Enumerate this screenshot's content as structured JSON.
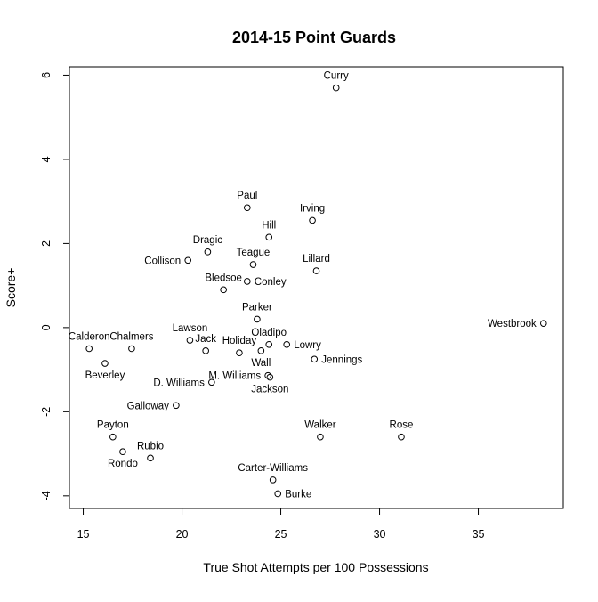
{
  "title": "2014-15 Point Guards",
  "xlabel": "True Shot Attempts per 100 Possessions",
  "ylabel": "Score+",
  "chart_data": {
    "type": "scatter",
    "title": "2014-15 Point Guards",
    "xlabel": "True Shot Attempts per 100 Possessions",
    "ylabel": "Score+",
    "xlim": [
      14.3,
      39.3
    ],
    "ylim": [
      -4.3,
      6.2
    ],
    "xticks": [
      "15",
      "20",
      "25",
      "30",
      "35"
    ],
    "xtick_values": [
      15,
      20,
      25,
      30,
      35
    ],
    "yticks": [
      "-4",
      "-2",
      "0",
      "2",
      "4",
      "6"
    ],
    "ytick_values": [
      -4,
      -2,
      0,
      2,
      4,
      6
    ],
    "grid": false,
    "legend": "none",
    "marker": "open-circle",
    "marker_color": "#000000",
    "points": [
      {
        "name": "Curry",
        "x": 27.8,
        "y": 5.7,
        "label_pos": "above"
      },
      {
        "name": "Paul",
        "x": 23.3,
        "y": 2.85,
        "label_pos": "above"
      },
      {
        "name": "Irving",
        "x": 26.6,
        "y": 2.55,
        "label_pos": "above"
      },
      {
        "name": "Hill",
        "x": 24.4,
        "y": 2.15,
        "label_pos": "above"
      },
      {
        "name": "Dragic",
        "x": 21.3,
        "y": 1.8,
        "label_pos": "above"
      },
      {
        "name": "Collison",
        "x": 20.3,
        "y": 1.6,
        "label_pos": "left"
      },
      {
        "name": "Teague",
        "x": 23.6,
        "y": 1.5,
        "label_pos": "above"
      },
      {
        "name": "Lillard",
        "x": 26.8,
        "y": 1.35,
        "label_pos": "above"
      },
      {
        "name": "Conley",
        "x": 23.3,
        "y": 1.1,
        "label_pos": "right"
      },
      {
        "name": "Bledsoe",
        "x": 22.1,
        "y": 0.9,
        "label_pos": "above"
      },
      {
        "name": "Parker",
        "x": 23.8,
        "y": 0.2,
        "label_pos": "above"
      },
      {
        "name": "Westbrook",
        "x": 38.3,
        "y": 0.1,
        "label_pos": "left"
      },
      {
        "name": "Lawson",
        "x": 20.4,
        "y": -0.3,
        "label_pos": "above"
      },
      {
        "name": "Oladipo",
        "x": 24.4,
        "y": -0.4,
        "label_pos": "above"
      },
      {
        "name": "Lowry",
        "x": 25.3,
        "y": -0.4,
        "label_pos": "right"
      },
      {
        "name": "Calderon",
        "x": 15.3,
        "y": -0.5,
        "label_pos": "above"
      },
      {
        "name": "Chalmers",
        "x": 17.45,
        "y": -0.5,
        "label_pos": "above"
      },
      {
        "name": "Jack",
        "x": 21.2,
        "y": -0.55,
        "label_pos": "above"
      },
      {
        "name": "Wall",
        "x": 24.0,
        "y": -0.55,
        "label_pos": "below"
      },
      {
        "name": "Holiday",
        "x": 22.9,
        "y": -0.6,
        "label_pos": "above"
      },
      {
        "name": "Jennings",
        "x": 26.7,
        "y": -0.75,
        "label_pos": "right"
      },
      {
        "name": "Beverley",
        "x": 16.1,
        "y": -0.85,
        "label_pos": "below"
      },
      {
        "name": "M. Williams",
        "x": 24.35,
        "y": -1.14,
        "label_pos": "left"
      },
      {
        "name": "Jackson",
        "x": 24.45,
        "y": -1.18,
        "label_pos": "below"
      },
      {
        "name": "D. Williams",
        "x": 21.5,
        "y": -1.3,
        "label_pos": "left"
      },
      {
        "name": "Galloway",
        "x": 19.7,
        "y": -1.85,
        "label_pos": "left"
      },
      {
        "name": "Payton",
        "x": 16.5,
        "y": -2.6,
        "label_pos": "above"
      },
      {
        "name": "Walker",
        "x": 27.0,
        "y": -2.6,
        "label_pos": "above"
      },
      {
        "name": "Rose",
        "x": 31.1,
        "y": -2.6,
        "label_pos": "above"
      },
      {
        "name": "Rondo",
        "x": 17.0,
        "y": -2.95,
        "label_pos": "below"
      },
      {
        "name": "Rubio",
        "x": 18.4,
        "y": -3.1,
        "label_pos": "above"
      },
      {
        "name": "Carter-Williams",
        "x": 24.6,
        "y": -3.62,
        "label_pos": "above"
      },
      {
        "name": "Burke",
        "x": 24.85,
        "y": -3.95,
        "label_pos": "right"
      }
    ]
  }
}
